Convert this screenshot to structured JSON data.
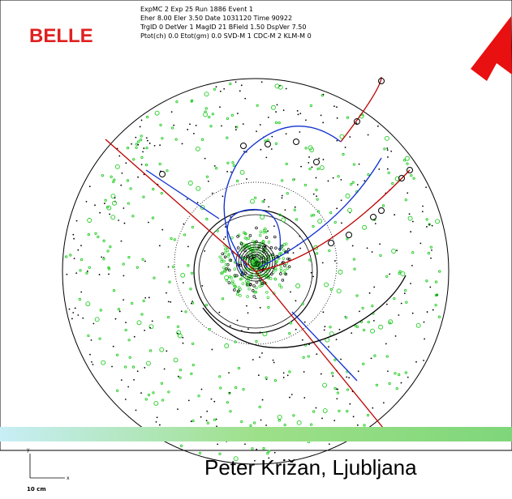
{
  "logo": "BELLE",
  "info_lines": [
    "ExpMC  2 Exp    25  Run     1886  Event     1",
    "Eher  8.00  Eler  3.50  Date  1031120  Time  90922",
    "TrgID   0 DetVer    1  MagID  21  BField  1.50  DspVer  7.50",
    "Ptot(ch)    0.0  Etot(gm)    0.0 SVD-M  1 CDC-M  2 KLM-M  0"
  ],
  "footer": "Peter Križan, Ljubljana",
  "scale": {
    "y_axis": "y",
    "x_axis": "x",
    "length": "10 cm"
  }
}
